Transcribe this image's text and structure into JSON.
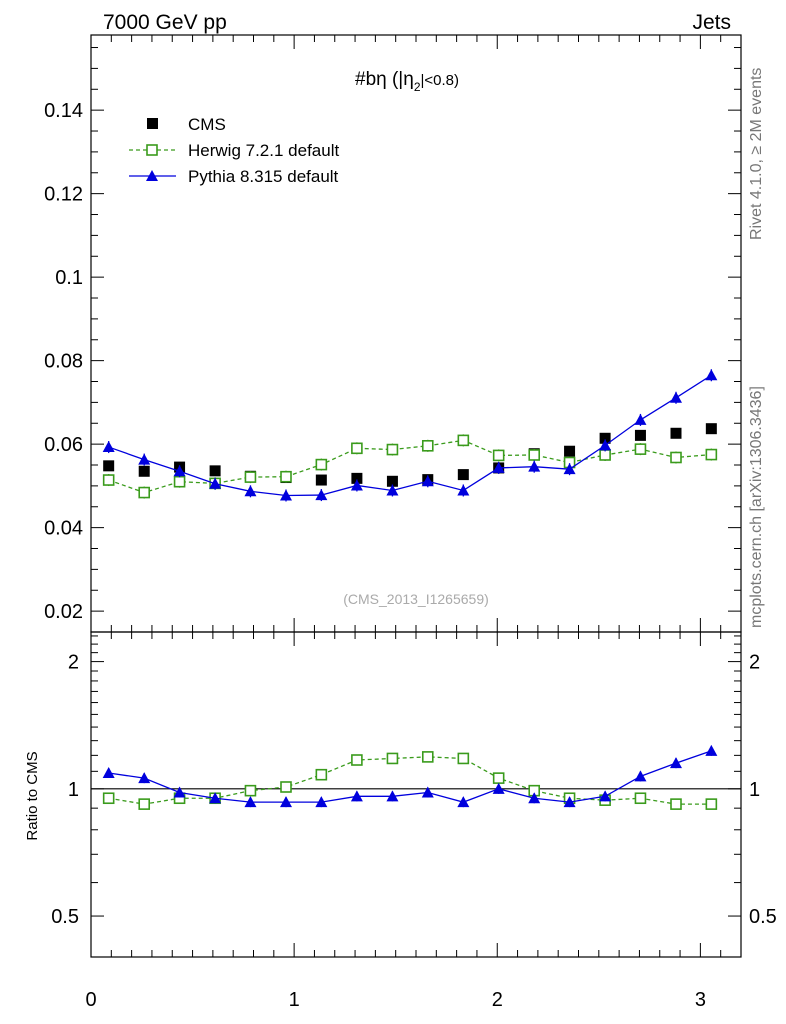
{
  "header": {
    "left": "7000 GeV pp",
    "right": "Jets"
  },
  "side_labels": {
    "rivet": "Rivet 4.1.0, ≥ 2M events",
    "mcplots": "mcplots.cern.ch [arXiv:1306.3436]"
  },
  "watermark": "(CMS_2013_I1265659)",
  "chart_data": {
    "type": "scatter",
    "title": "#bη (|η",
    "title_sub": "2",
    "title_tail": "|<0.8)",
    "xlabel": "",
    "ylabel_ratio": "Ratio to CMS",
    "xlim": [
      0,
      3.2
    ],
    "ylim": [
      0.015,
      0.158
    ],
    "ratio_ylim": [
      0.4,
      2.35
    ],
    "y_ticks": [
      "0.02",
      "0.04",
      "0.06",
      "0.08",
      "0.1",
      "0.12",
      "0.14"
    ],
    "y_tick_values": [
      0.02,
      0.04,
      0.06,
      0.08,
      0.1,
      0.12,
      0.14
    ],
    "x_ticks": [
      "0",
      "1",
      "2",
      "3"
    ],
    "x_tick_values": [
      0,
      1,
      2,
      3
    ],
    "ratio_ticks": [
      "0.5",
      "1",
      "2"
    ],
    "ratio_tick_values": [
      0.5,
      1,
      2
    ],
    "x": [
      0.087,
      0.262,
      0.436,
      0.611,
      0.785,
      0.96,
      1.134,
      1.309,
      1.484,
      1.658,
      1.833,
      2.007,
      2.182,
      2.356,
      2.531,
      2.705,
      2.88,
      3.054
    ],
    "series": [
      {
        "name": "CMS",
        "color": "#000000",
        "marker": "square-filled",
        "values": [
          0.0548,
          0.0535,
          0.0545,
          0.0536,
          0.0523,
          0.052,
          0.0514,
          0.0518,
          0.0511,
          0.0515,
          0.0527,
          0.0543,
          0.0577,
          0.0583,
          0.0614,
          0.0621,
          0.0626,
          0.0637
        ],
        "ratio": [
          1,
          1,
          1,
          1,
          1,
          1,
          1,
          1,
          1,
          1,
          1,
          1,
          1,
          1,
          1,
          1,
          1,
          1
        ]
      },
      {
        "name": "Herwig 7.2.1 default",
        "color": "#3a9b1c",
        "marker": "square-open",
        "values": [
          0.0514,
          0.0484,
          0.051,
          0.0506,
          0.0521,
          0.0522,
          0.0551,
          0.059,
          0.0587,
          0.0596,
          0.0609,
          0.0573,
          0.0574,
          0.0556,
          0.0574,
          0.0588,
          0.0568,
          0.0575
        ],
        "ratio": [
          0.95,
          0.92,
          0.95,
          0.95,
          0.99,
          1.01,
          1.08,
          1.17,
          1.18,
          1.19,
          1.18,
          1.06,
          0.99,
          0.95,
          0.94,
          0.95,
          0.92,
          0.92
        ]
      },
      {
        "name": "Pythia 8.315 default",
        "color": "#0000dd",
        "marker": "triangle-filled",
        "values": [
          0.0593,
          0.0563,
          0.0535,
          0.0505,
          0.0487,
          0.0477,
          0.0478,
          0.0501,
          0.0489,
          0.0511,
          0.0489,
          0.0543,
          0.0546,
          0.054,
          0.0597,
          0.0658,
          0.0711,
          0.0765
        ],
        "ratio": [
          1.09,
          1.06,
          0.98,
          0.95,
          0.93,
          0.93,
          0.93,
          0.96,
          0.96,
          0.98,
          0.93,
          1.0,
          0.95,
          0.93,
          0.96,
          1.07,
          1.15,
          1.23
        ]
      }
    ]
  }
}
